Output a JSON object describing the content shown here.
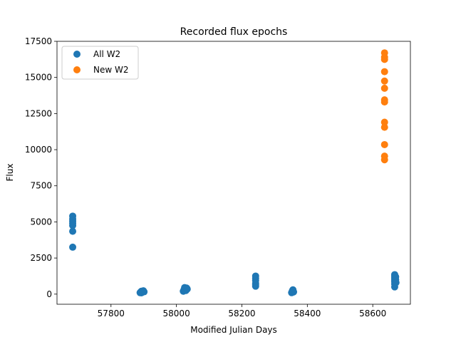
{
  "chart_data": {
    "type": "scatter",
    "title": "Recorded flux epochs",
    "xlabel": "Modified Julian Days",
    "ylabel": "Flux",
    "xlim": [
      57635,
      58715
    ],
    "ylim": [
      -700,
      17500
    ],
    "xticks": [
      57800,
      58000,
      58200,
      58400,
      58600
    ],
    "yticks": [
      0,
      2500,
      5000,
      7500,
      10000,
      12500,
      15000,
      17500
    ],
    "grid": false,
    "legend": "upper-left",
    "series": [
      {
        "name": "All W2",
        "color": "#1f77b4",
        "points": [
          [
            57683,
            3250
          ],
          [
            57683,
            4350
          ],
          [
            57683,
            4750
          ],
          [
            57683,
            4900
          ],
          [
            57683,
            5050
          ],
          [
            57683,
            5200
          ],
          [
            57683,
            5400
          ],
          [
            57889,
            100
          ],
          [
            57891,
            150
          ],
          [
            57893,
            200
          ],
          [
            57895,
            120
          ],
          [
            57897,
            180
          ],
          [
            57899,
            230
          ],
          [
            57901,
            160
          ],
          [
            57893,
            90
          ],
          [
            58021,
            200
          ],
          [
            58023,
            300
          ],
          [
            58025,
            450
          ],
          [
            58027,
            380
          ],
          [
            58029,
            250
          ],
          [
            58031,
            420
          ],
          [
            58033,
            350
          ],
          [
            58242,
            550
          ],
          [
            58242,
            750
          ],
          [
            58242,
            950
          ],
          [
            58242,
            1100
          ],
          [
            58242,
            1250
          ],
          [
            58242,
            650
          ],
          [
            58352,
            100
          ],
          [
            58354,
            200
          ],
          [
            58356,
            300
          ],
          [
            58358,
            150
          ],
          [
            58355,
            250
          ],
          [
            58667,
            500
          ],
          [
            58667,
            700
          ],
          [
            58667,
            850
          ],
          [
            58667,
            950
          ],
          [
            58667,
            1050
          ],
          [
            58667,
            1150
          ],
          [
            58667,
            1250
          ],
          [
            58667,
            1350
          ],
          [
            58670,
            1000
          ],
          [
            58670,
            1200
          ],
          [
            58671,
            800
          ]
        ]
      },
      {
        "name": "New W2",
        "color": "#ff7f0e",
        "points": [
          [
            58636,
            9300
          ],
          [
            58636,
            9550
          ],
          [
            58636,
            10350
          ],
          [
            58636,
            11550
          ],
          [
            58636,
            11900
          ],
          [
            58636,
            13300
          ],
          [
            58636,
            13450
          ],
          [
            58636,
            14250
          ],
          [
            58636,
            14750
          ],
          [
            58636,
            15400
          ],
          [
            58636,
            16250
          ],
          [
            58636,
            16400
          ],
          [
            58636,
            16700
          ]
        ]
      }
    ]
  }
}
